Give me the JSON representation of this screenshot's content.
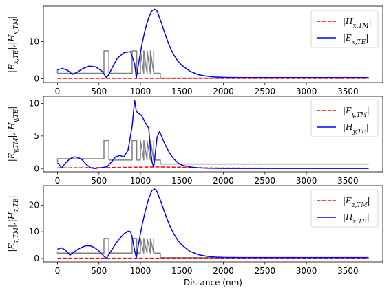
{
  "chart_data": [
    {
      "type": "line",
      "ylabel": "|E_{x,TE}|,|H_{x,TM}|",
      "xlim": [
        -170,
        3920
      ],
      "ylim": [
        -1,
        19.5
      ],
      "xticks": [
        0,
        500,
        1000,
        1500,
        2000,
        2500,
        3000,
        3500
      ],
      "yticks": [
        0,
        10
      ],
      "legend_position": "upper right",
      "series": [
        {
          "name": "|H_{x,TM}|",
          "color": "#ff0000",
          "dash": "dashed",
          "x": [
            0,
            1000,
            1500,
            2000,
            2500,
            3000,
            3750
          ],
          "y": [
            0.1,
            0.1,
            0.1,
            0.1,
            0.1,
            0.1,
            0.1
          ]
        },
        {
          "name": "|E_{x,TE}|",
          "color": "#0000ff",
          "dash": "solid",
          "x": [
            0,
            60,
            120,
            180,
            240,
            300,
            380,
            460,
            540,
            590,
            620,
            660,
            720,
            800,
            880,
            930,
            950,
            980,
            1020,
            1060,
            1100,
            1140,
            1170,
            1200,
            1250,
            1300,
            1350,
            1400,
            1450,
            1500,
            1600,
            1700,
            1800,
            1900,
            2000,
            2200,
            2500,
            3000,
            3750
          ],
          "y": [
            2.4,
            2.8,
            2.3,
            1.2,
            1.8,
            2.7,
            3.4,
            3.2,
            2.0,
            0.3,
            1.2,
            3.0,
            5.5,
            7.0,
            7.3,
            4.0,
            0.2,
            4.5,
            9.5,
            13.5,
            16.5,
            18.3,
            18.7,
            18.2,
            15.2,
            11.8,
            8.8,
            6.5,
            4.8,
            3.6,
            2.0,
            1.1,
            0.7,
            0.5,
            0.4,
            0.35,
            0.35,
            0.35,
            0.35
          ]
        },
        {
          "name": "",
          "color": "#808080",
          "dash": "solid",
          "x": [
            0,
            0,
            560,
            560,
            620,
            620,
            900,
            900,
            955,
            955,
            1000,
            1000,
            1040,
            1040,
            1080,
            1080,
            1120,
            1120,
            1160,
            1160,
            1160,
            1240,
            1240,
            3750
          ],
          "y": [
            2.5,
            1.5,
            1.5,
            7.5,
            7.5,
            1.5,
            1.5,
            7.5,
            7.5,
            1.5,
            1.5,
            7.5,
            1.5,
            7.5,
            1.5,
            7.5,
            1.5,
            7.5,
            1.5,
            7.5,
            1.5,
            1.5,
            0.2,
            0.2
          ]
        }
      ]
    },
    {
      "type": "line",
      "ylabel": "|E_{y,TM}|,|H_{y,TE}|",
      "xlim": [
        -170,
        3920
      ],
      "ylim": [
        -0.5,
        11.1
      ],
      "xticks": [
        0,
        500,
        1000,
        1500,
        2000,
        2500,
        3000,
        3500
      ],
      "yticks": [
        0,
        5,
        10
      ],
      "legend_position": "upper right",
      "series": [
        {
          "name": "|E_{y,TM}|",
          "color": "#ff0000",
          "dash": "dashed",
          "x": [
            0,
            600,
            900,
            1200,
            1500,
            1800,
            2000,
            2500,
            3000,
            3750
          ],
          "y": [
            0.1,
            0.15,
            0.2,
            0.25,
            0.2,
            0.1,
            0.08,
            0.06,
            0.06,
            0.06
          ]
        },
        {
          "name": "|H_{y,TE}|",
          "color": "#0000ff",
          "dash": "solid",
          "x": [
            0,
            50,
            100,
            150,
            200,
            250,
            300,
            350,
            400,
            450,
            500,
            560,
            600,
            650,
            700,
            750,
            800,
            850,
            900,
            930,
            950,
            970,
            1000,
            1020,
            1040,
            1060,
            1080,
            1100,
            1120,
            1140,
            1160,
            1180,
            1200,
            1230,
            1260,
            1300,
            1350,
            1400,
            1450,
            1500,
            1600,
            1700,
            1800,
            2000,
            2500,
            3750
          ],
          "y": [
            0.9,
            0.1,
            0.9,
            1.5,
            1.8,
            1.7,
            1.3,
            0.6,
            0.1,
            0.0,
            0.1,
            0.2,
            0.3,
            1.0,
            1.8,
            2.0,
            1.8,
            2.8,
            6.5,
            10.5,
            8.8,
            8.5,
            8.3,
            8.0,
            7.5,
            7.0,
            6.6,
            6.2,
            3.0,
            1.0,
            0.2,
            2.5,
            4.8,
            5.7,
            4.8,
            3.6,
            2.4,
            1.5,
            0.9,
            0.5,
            0.25,
            0.1,
            0.05,
            0.02,
            0.02,
            0.02
          ]
        },
        {
          "name": "",
          "color": "#808080",
          "dash": "solid",
          "x": [
            0,
            0,
            560,
            560,
            620,
            620,
            900,
            900,
            955,
            955,
            1000,
            1000,
            1040,
            1040,
            1080,
            1080,
            1120,
            1120,
            1160,
            1160,
            1160,
            1240,
            1240,
            3750
          ],
          "y": [
            1.0,
            1.5,
            1.5,
            4.3,
            4.3,
            1.3,
            1.3,
            4.3,
            4.3,
            1.3,
            1.3,
            4.3,
            1.3,
            4.3,
            1.3,
            4.3,
            1.3,
            4.3,
            1.3,
            4.3,
            1.3,
            1.3,
            0.7,
            0.7
          ]
        }
      ]
    },
    {
      "type": "line",
      "ylabel": "|E_{z,TM}|,|H_{z,TE}|",
      "xlim": [
        -170,
        3920
      ],
      "ylim": [
        -1.3,
        27.3
      ],
      "xticks": [
        0,
        500,
        1000,
        1500,
        2000,
        2500,
        3000,
        3500
      ],
      "yticks": [
        0,
        10,
        20
      ],
      "xlabel": "Distance (nm)",
      "legend_position": "upper right",
      "series": [
        {
          "name": "|E_{z,TM}|",
          "color": "#ff0000",
          "dash": "dashed",
          "x": [
            0,
            1000,
            1500,
            2000,
            2500,
            3000,
            3750
          ],
          "y": [
            0.1,
            0.1,
            0.1,
            0.1,
            0.1,
            0.1,
            0.1
          ]
        },
        {
          "name": "|H_{z,TE}|",
          "color": "#0000ff",
          "dash": "solid",
          "x": [
            0,
            50,
            100,
            150,
            200,
            250,
            300,
            350,
            400,
            450,
            500,
            560,
            590,
            620,
            660,
            700,
            750,
            800,
            850,
            880,
            900,
            930,
            950,
            980,
            1020,
            1060,
            1100,
            1140,
            1170,
            1200,
            1250,
            1300,
            1350,
            1400,
            1450,
            1500,
            1600,
            1700,
            1800,
            1900,
            2000,
            2200,
            2500,
            3000,
            3750
          ],
          "y": [
            3.5,
            4.0,
            3.0,
            1.2,
            2.5,
            3.5,
            4.3,
            4.8,
            4.7,
            4.0,
            2.8,
            0.8,
            0.1,
            1.5,
            3.5,
            5.5,
            7.5,
            9.2,
            10.2,
            10.0,
            8.0,
            3.0,
            0.3,
            6.0,
            12.5,
            18.0,
            22.5,
            25.5,
            26.0,
            25.0,
            21.0,
            16.5,
            12.5,
            9.3,
            6.8,
            5.0,
            2.6,
            1.4,
            0.8,
            0.5,
            0.4,
            0.35,
            0.35,
            0.35,
            0.35
          ]
        },
        {
          "name": "",
          "color": "#808080",
          "dash": "solid",
          "x": [
            0,
            0,
            560,
            560,
            620,
            620,
            900,
            900,
            955,
            955,
            1000,
            1000,
            1040,
            1040,
            1080,
            1080,
            1120,
            1120,
            1160,
            1160,
            1160,
            1240,
            1240,
            3750
          ],
          "y": [
            2.5,
            2.0,
            2.0,
            7.5,
            7.5,
            2.0,
            2.0,
            7.5,
            7.5,
            2.0,
            2.0,
            7.5,
            2.0,
            7.5,
            2.0,
            7.5,
            2.0,
            7.5,
            2.0,
            7.5,
            2.0,
            2.0,
            0.3,
            0.3
          ]
        }
      ]
    }
  ]
}
